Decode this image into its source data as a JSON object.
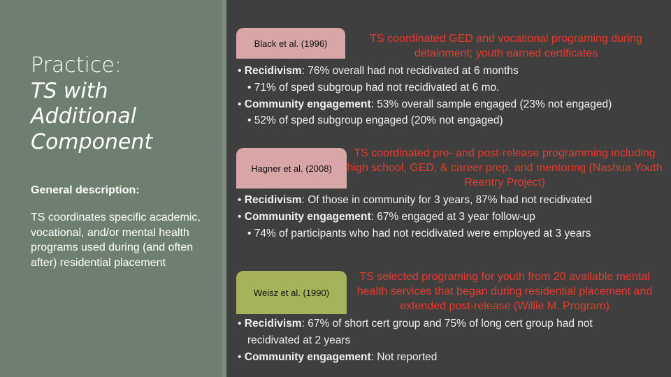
{
  "left": {
    "title_line1": "Practice:",
    "title_line2": "TS with",
    "title_line3": "Additional",
    "title_line4": "Component",
    "general_heading": "General description:",
    "general_text": "TS coordinates specific academic, vocational, and/or mental health programs used during (and often after) residential placement"
  },
  "studies": [
    {
      "citation": "Black et al. (1996)",
      "heading": "TS coordinated GED and vocational programing during detainment; youth earned certificates",
      "b1_label": "Recidivism",
      "b1_text": ": 76% overall had not recidivated at 6 months",
      "b1_sub": "• 71% of sped subgroup had not recidivated at 6 mo.",
      "b2_label": "Community engagement",
      "b2_text": ": 53% overall sample engaged (23% not engaged)",
      "b2_sub": "• 52% of sped subgroup engaged (20% not engaged)"
    },
    {
      "citation": "Hagner et al. (2008)",
      "heading": "TS coordinated pre- and post-release programming including high school, GED, & career prep, and mentoring (Nashua Youth Reentry Project)",
      "b1_label": "Recidivism",
      "b1_text": ": Of those in community for 3 years, 87% had not recidivated",
      "b2_label": "Community engagement",
      "b2_text": ": 67% engaged at 3 year follow-up",
      "b2_sub": "• 74% of participants who had not recidivated were employed at 3 years"
    },
    {
      "citation": "Weisz et al. (1990)",
      "heading": "TS selected programing for youth from 20 available mental health services that began during residential placement and extended post-release (Willie M. Program)",
      "b1_label": "Recidivism",
      "b1_text": ": 67% of short cert group and 75% of long cert group had not",
      "b1_cont": "recidivated at 2 years",
      "b2_label": "Community engagement",
      "b2_text": ": Not reported"
    }
  ],
  "bullet": "•",
  "colors": {
    "left_panel": "#6e7f6f",
    "right_panel": "#3f3f3f",
    "heading": "#e63b2e",
    "tag_pink": "#d9a6a8",
    "tag_green": "#a7b35a"
  }
}
